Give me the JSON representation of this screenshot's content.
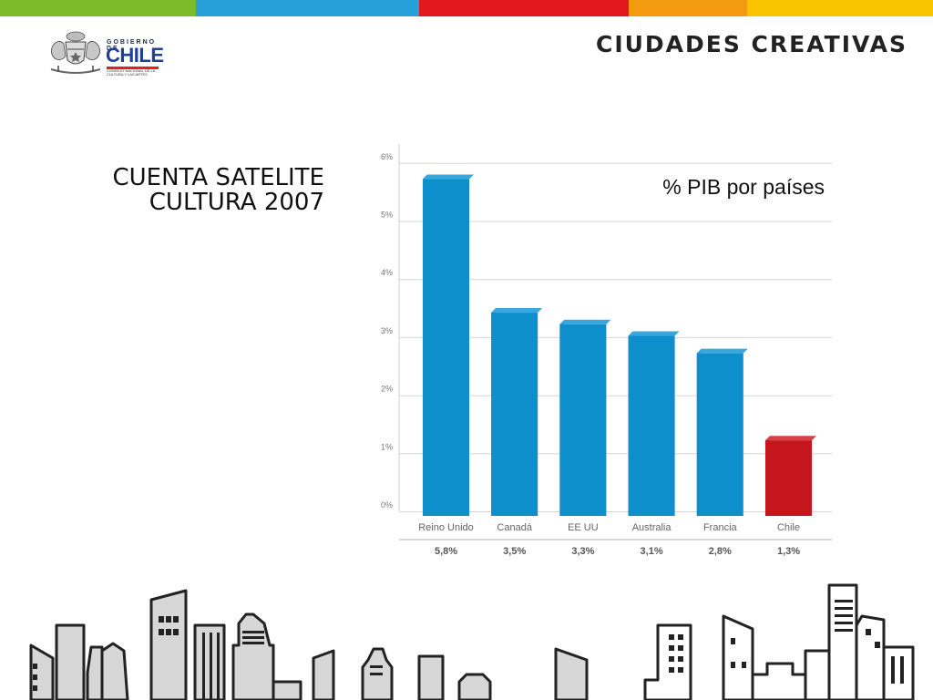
{
  "header": {
    "brand_top": "GOBIERNO DE",
    "brand_main": "CHILE",
    "brand_sub": "CONSEJO NACIONAL DE LA CULTURA Y LAS ARTES",
    "title": "CIUDADES CREATIVAS",
    "stripe_colors": [
      "#7dbb2a",
      "#27a0d9",
      "#e2181f",
      "#f39a11",
      "#f9c300"
    ]
  },
  "slide": {
    "title_line1": "CUENTA SATELITE",
    "title_line2": "CULTURA 2007"
  },
  "chart_data": {
    "type": "bar",
    "title": "% PIB por países",
    "categories": [
      "Reino Unido",
      "Canadá",
      "EE UU",
      "Australia",
      "Francia",
      "Chile"
    ],
    "values": [
      5.8,
      3.5,
      3.3,
      3.1,
      2.8,
      1.3
    ],
    "value_labels": [
      "5,8%",
      "3,5%",
      "3,3%",
      "3,1%",
      "2,8%",
      "1,3%"
    ],
    "yticks": [
      "0%",
      "1%",
      "2%",
      "3%",
      "4%",
      "5%",
      "6%"
    ],
    "ylim": [
      0,
      6
    ],
    "grid": true,
    "colors": [
      "#0d8fcc",
      "#0d8fcc",
      "#0d8fcc",
      "#0d8fcc",
      "#0d8fcc",
      "#c4161c"
    ]
  }
}
